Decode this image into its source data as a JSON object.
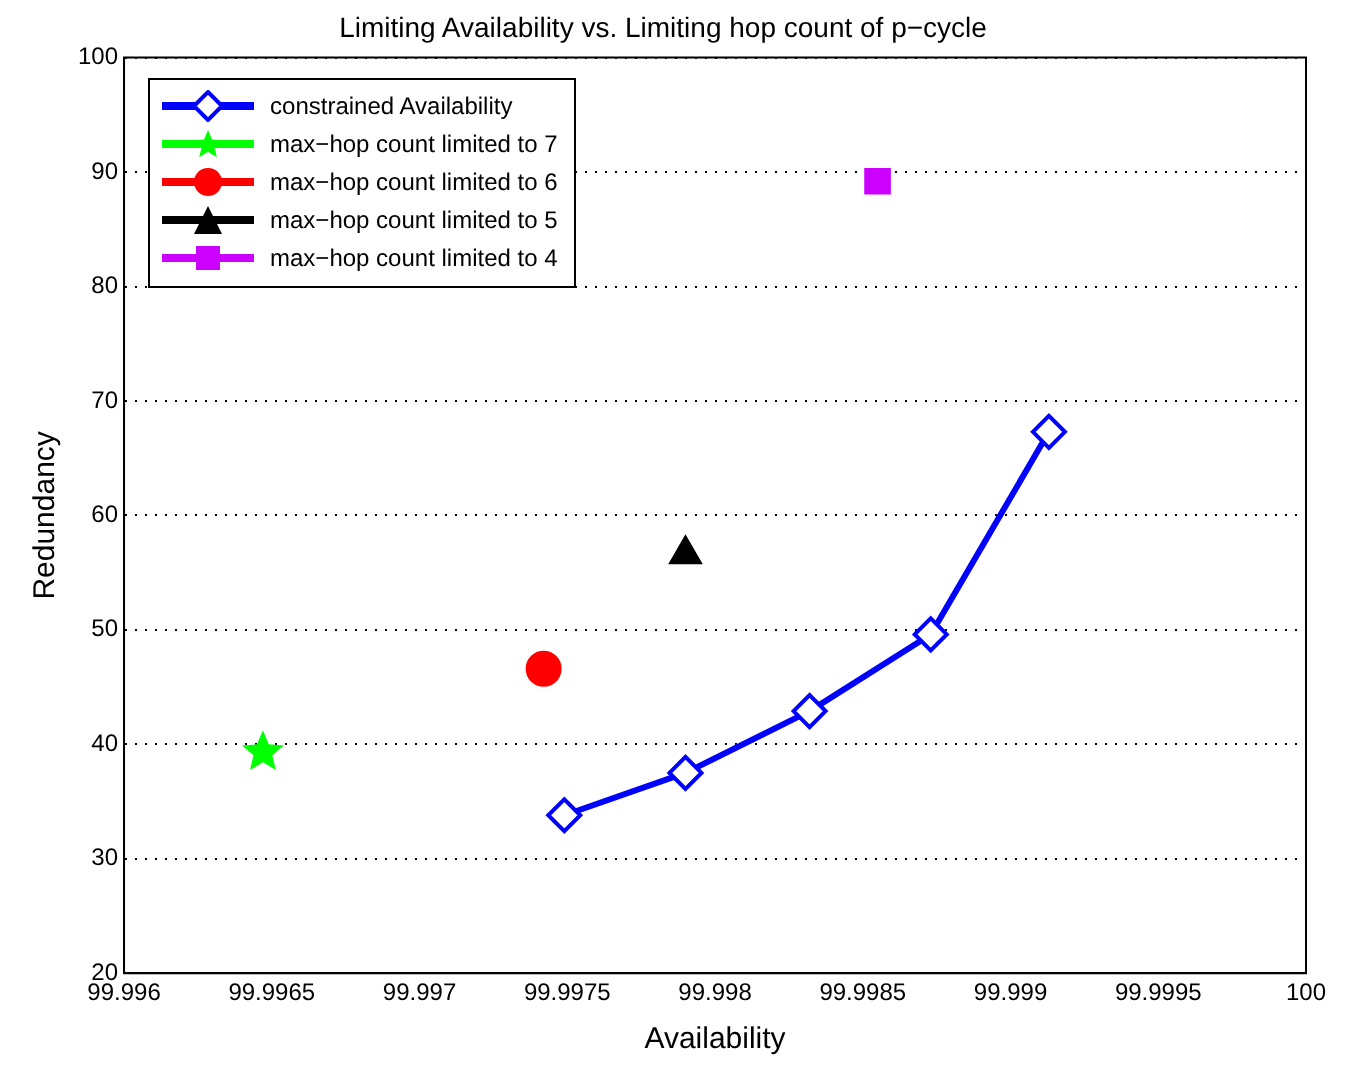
{
  "chart_data": {
    "type": "line",
    "title": "Limiting Availability vs. Limiting hop count of p−cycle",
    "xlabel": "Availability",
    "ylabel": "Redundancy",
    "xlim": [
      99.996,
      100
    ],
    "xticks": [
      99.996,
      99.9965,
      99.997,
      99.9975,
      99.998,
      99.9985,
      99.999,
      99.9995,
      100
    ],
    "ylim": [
      20,
      100
    ],
    "yticks": [
      20,
      30,
      40,
      50,
      60,
      70,
      80,
      90,
      100
    ],
    "grid": "y",
    "legend": "top left",
    "series": [
      {
        "name": "constrained Availability",
        "marker": "diamond",
        "color": "#0000ff",
        "x": [
          99.99749,
          99.9979,
          99.99832,
          99.99873,
          99.99913
        ],
        "values": [
          33.8,
          37.5,
          42.9,
          49.6,
          67.3
        ]
      },
      {
        "name": "max−hop count limited to 7",
        "type": "scatter",
        "marker": "star",
        "color": "#00ff00",
        "x": [
          99.99647
        ],
        "values": [
          39.3
        ]
      },
      {
        "name": "max−hop count limited to 6",
        "type": "scatter",
        "marker": "circle",
        "color": "#ff0000",
        "x": [
          99.99742
        ],
        "values": [
          46.6
        ]
      },
      {
        "name": "max−hop count limited to 5",
        "type": "scatter",
        "marker": "triangle",
        "color": "#000000",
        "x": [
          99.9979
        ],
        "values": [
          56.6
        ]
      },
      {
        "name": "max−hop count limited to 4",
        "type": "scatter",
        "marker": "square",
        "color": "#cc00ff",
        "x": [
          99.99855
        ],
        "values": [
          89.2
        ]
      }
    ]
  }
}
